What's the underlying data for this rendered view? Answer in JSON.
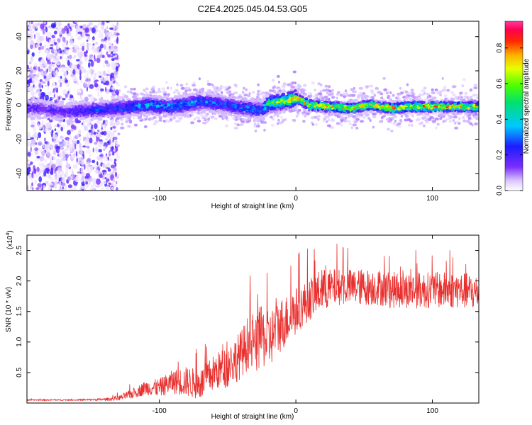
{
  "title": "C2E4.2025.045.04.53.G05",
  "chart_data": [
    {
      "type": "heatmap",
      "title": "C2E4.2025.045.04.53.G05",
      "xlabel": "Height of straight line (km)",
      "ylabel": "Frequency (Hz)",
      "xlim": [
        -197,
        134
      ],
      "ylim": [
        -50,
        49
      ],
      "xticks": [
        -100,
        0,
        100
      ],
      "xtick_labels": [
        "-100",
        "0",
        "100"
      ],
      "yticks": [
        -40,
        -20,
        0,
        20,
        40
      ],
      "ytick_labels": [
        "-40",
        "-20",
        "0",
        "20",
        "40"
      ],
      "colorbar": {
        "label": "Normalized spectral amplitude",
        "range": [
          0,
          0.95
        ],
        "ticks": [
          0.0,
          0.2,
          0.4,
          0.6,
          0.8
        ],
        "tick_labels": [
          "0.0",
          "0.2",
          "0.4",
          "0.6",
          "0.8"
        ],
        "colormap": "rainbow (white-violet-blue-cyan-green-yellow-red-magenta)"
      },
      "signal_ridge": {
        "description_values_x_km": [
          -190,
          -170,
          -150,
          -130,
          -110,
          -90,
          -70,
          -50,
          -35,
          -25,
          -20,
          -10,
          0,
          10,
          25,
          40,
          55,
          70,
          85,
          100,
          115,
          130
        ],
        "center_freq_hz": [
          -2,
          -4,
          -3,
          -2,
          0,
          -1,
          2,
          0,
          -2,
          -3,
          1,
          2,
          4,
          0,
          -1,
          -2,
          0,
          -2,
          -1,
          -1,
          -1,
          -1
        ],
        "peak_amplitude": [
          0.2,
          0.2,
          0.3,
          0.3,
          0.4,
          0.4,
          0.35,
          0.3,
          0.35,
          0.35,
          0.6,
          0.7,
          0.75,
          0.85,
          0.85,
          0.8,
          0.8,
          0.85,
          0.85,
          0.85,
          0.85,
          0.8
        ]
      },
      "noise_region_x_km": [
        -197,
        -130
      ]
    },
    {
      "type": "line",
      "xlabel": "Height of straight line (km)",
      "ylabel": "SNR (10 * v/v)",
      "multiplier_label": "(x10",
      "multiplier_exp": "4",
      "xlim": [
        -197,
        134
      ],
      "ylim": [
        0,
        27500
      ],
      "xticks": [
        -100,
        0,
        100
      ],
      "xtick_labels": [
        "-100",
        "0",
        "100"
      ],
      "yticks": [
        5000,
        10000,
        15000,
        20000,
        25000
      ],
      "ytick_labels": [
        "0.5",
        "1.0",
        "1.5",
        "2.0",
        "2.5"
      ],
      "color": "#e8302e",
      "series": [
        {
          "x": [
            -197,
            -180,
            -160,
            -140,
            -130,
            -120,
            -110,
            -100,
            -90,
            -80,
            -70,
            -60,
            -50,
            -40,
            -35,
            -30,
            -25,
            -20,
            -15,
            -10,
            -5,
            0,
            5,
            10,
            15,
            20,
            30,
            40,
            50,
            60,
            70,
            80,
            90,
            100,
            110,
            120,
            134
          ],
          "values": [
            500,
            500,
            500,
            600,
            800,
            1500,
            2500,
            2500,
            3500,
            3500,
            3000,
            5000,
            6000,
            8000,
            10000,
            9000,
            11000,
            10000,
            12000,
            13000,
            14000,
            15000,
            16000,
            17000,
            18000,
            18500,
            19000,
            19000,
            19000,
            19000,
            18500,
            18500,
            18500,
            18500,
            18500,
            18500,
            18000
          ],
          "noise_amplitude": [
            100,
            100,
            100,
            200,
            400,
            800,
            1200,
            1500,
            2000,
            2500,
            2500,
            3000,
            3500,
            4000,
            4500,
            4500,
            5000,
            5000,
            4500,
            4500,
            4000,
            4000,
            3500,
            3500,
            3500,
            3500,
            3000,
            3000,
            3000,
            3000,
            3000,
            3000,
            3000,
            3000,
            3000,
            3000,
            3000
          ]
        }
      ]
    }
  ]
}
